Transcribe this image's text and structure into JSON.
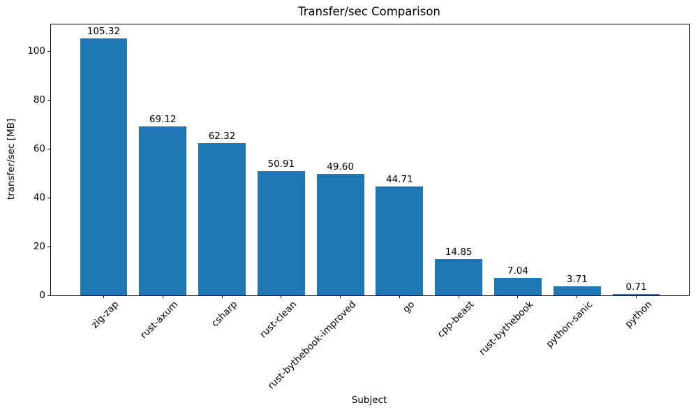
{
  "chart_data": {
    "type": "bar",
    "title": "Transfer/sec Comparison",
    "xlabel": "Subject",
    "ylabel": "transfer/sec [MB]",
    "categories": [
      "zig-zap",
      "rust-axum",
      "csharp",
      "rust-clean",
      "rust-bythebook-improved",
      "go",
      "cpp-beast",
      "rust-bythebook",
      "python-sanic",
      "python"
    ],
    "values": [
      105.32,
      69.12,
      62.32,
      50.91,
      49.6,
      44.71,
      14.85,
      7.04,
      3.71,
      0.71
    ],
    "bar_labels": [
      "105.32",
      "69.12",
      "62.32",
      "50.91",
      "49.60",
      "44.71",
      "14.85",
      "7.04",
      "3.71",
      "0.71"
    ],
    "yticks": [
      0,
      20,
      40,
      60,
      80,
      100
    ],
    "ylim": [
      0,
      110.9
    ],
    "bar_color": "#1f77b4",
    "axis_color": "#000000",
    "grid": false,
    "legend_position": "none",
    "xtick_rotation_deg": 45
  }
}
